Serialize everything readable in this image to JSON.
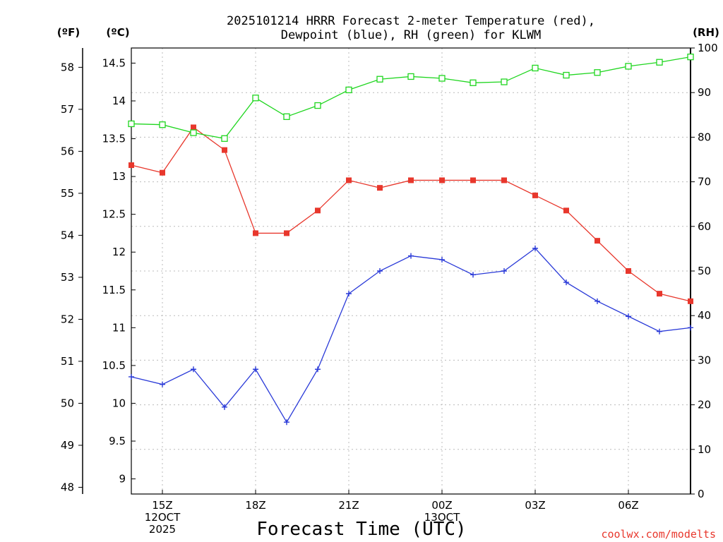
{
  "chart_data": {
    "type": "line",
    "title_line1": "2025101214 HRRR Forecast 2-meter Temperature (red),",
    "title_line2": "Dewpoint (blue), RH (green) for KLWM",
    "xlabel": "Forecast Time (UTC)",
    "credit": "coolwx.com/modelts",
    "units": {
      "f": "(ºF)",
      "c": "(ºC)",
      "rh": "(RH)"
    },
    "x_hours": [
      14,
      15,
      16,
      17,
      18,
      19,
      20,
      21,
      22,
      23,
      24,
      25,
      26,
      27,
      28,
      29,
      30,
      31,
      32
    ],
    "xlim": [
      14,
      32
    ],
    "x_ticks": [
      {
        "hour": 15,
        "lines": [
          "15Z",
          "12OCT",
          "2025"
        ]
      },
      {
        "hour": 18,
        "lines": [
          "18Z"
        ]
      },
      {
        "hour": 21,
        "lines": [
          "21Z"
        ]
      },
      {
        "hour": 24,
        "lines": [
          "00Z",
          "13OCT"
        ]
      },
      {
        "hour": 27,
        "lines": [
          "03Z"
        ]
      },
      {
        "hour": 30,
        "lines": [
          "06Z"
        ]
      }
    ],
    "c_ylim": [
      8.8,
      14.7
    ],
    "c_ticks": [
      "9",
      "9.5",
      "10",
      "10.5",
      "11",
      "11.5",
      "12",
      "12.5",
      "13",
      "13.5",
      "14",
      "14.5"
    ],
    "f_ticks": [
      "48",
      "49",
      "50",
      "51",
      "52",
      "53",
      "54",
      "55",
      "56",
      "57",
      "58"
    ],
    "rh_ylim": [
      0,
      100
    ],
    "rh_ticks": [
      "0",
      "10",
      "20",
      "30",
      "40",
      "50",
      "60",
      "70",
      "80",
      "90",
      "100"
    ],
    "series": [
      {
        "name": "Temperature",
        "color": "#e8372c",
        "marker": "filled-square",
        "values_c": [
          13.15,
          13.05,
          13.65,
          13.35,
          12.25,
          12.25,
          12.55,
          12.95,
          12.85,
          12.95,
          12.95,
          12.95,
          12.95,
          12.75,
          12.55,
          12.15,
          11.75,
          11.45,
          11.35
        ]
      },
      {
        "name": "Dewpoint",
        "color": "#2a3ad8",
        "marker": "plus",
        "values_c": [
          10.35,
          10.25,
          10.45,
          9.95,
          10.45,
          9.75,
          10.45,
          11.45,
          11.75,
          11.95,
          11.9,
          11.7,
          11.75,
          12.05,
          11.6,
          11.35,
          11.15,
          10.95,
          11.0
        ]
      },
      {
        "name": "RH",
        "color": "#1fd61f",
        "marker": "open-square",
        "values_rh": [
          83,
          82.8,
          81,
          79.7,
          88.8,
          84.6,
          87.1,
          90.6,
          93,
          93.6,
          93.2,
          92.2,
          92.4,
          95.5,
          93.9,
          94.5,
          95.9,
          96.8,
          98
        ]
      }
    ]
  }
}
